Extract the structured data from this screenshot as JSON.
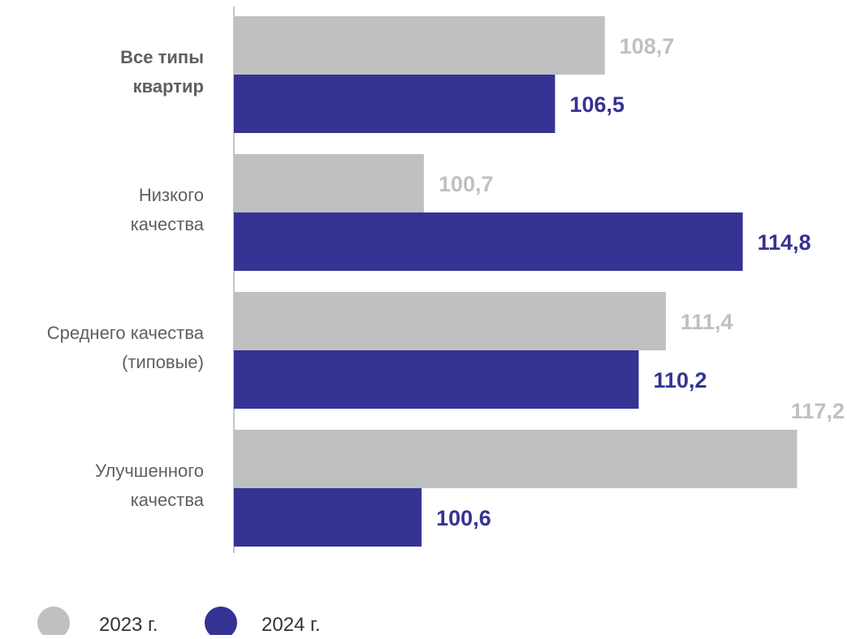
{
  "chart_data": {
    "type": "bar",
    "orientation": "horizontal",
    "categories": [
      {
        "lines": [
          "Все типы",
          "квартир"
        ],
        "bold": true
      },
      {
        "lines": [
          "Низкого",
          "качества"
        ],
        "bold": false
      },
      {
        "lines": [
          "Среднего качества",
          "(типовые)"
        ],
        "bold": false
      },
      {
        "lines": [
          "Улучшенного",
          "качества"
        ],
        "bold": false
      }
    ],
    "series": [
      {
        "name": "2023 г.",
        "color": "#c0c0c0",
        "label_color": "#c0c0c0",
        "values": [
          108.7,
          100.7,
          111.4,
          117.2
        ],
        "labels": [
          "108,7",
          "100,7",
          "111,4",
          "117,2"
        ]
      },
      {
        "name": "2024 г.",
        "color": "#353393",
        "label_color": "#353393",
        "values": [
          106.5,
          114.8,
          110.2,
          100.6
        ],
        "labels": [
          "106,5",
          "114,8",
          "110,2",
          "100,6"
        ]
      }
    ],
    "xlim": [
      92.3,
      117.3
    ],
    "grid": false,
    "legend_position": "bottom-left"
  }
}
